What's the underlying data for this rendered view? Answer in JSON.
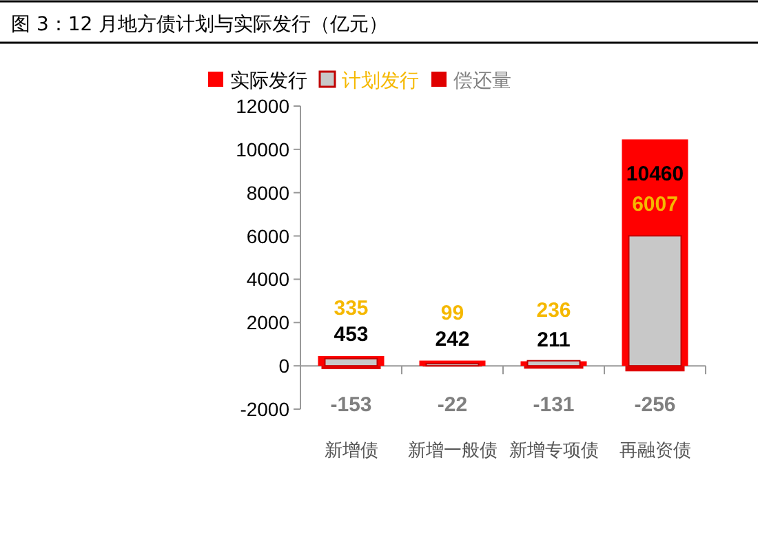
{
  "chart_data": {
    "type": "bar",
    "title": "图 3：12 月地方债计划与实际发行（亿元）",
    "categories": [
      "新增债",
      "新增一般债",
      "新增专项债",
      "再融资债"
    ],
    "series": [
      {
        "name": "实际发行",
        "color": "#ff0000",
        "values": [
          453,
          242,
          211,
          10460
        ]
      },
      {
        "name": "计划发行",
        "color": "#c8c8c8",
        "values": [
          335,
          99,
          236,
          6007
        ]
      },
      {
        "name": "偿还量",
        "color": "#e00000",
        "values": [
          -153,
          -22,
          -131,
          -256
        ]
      }
    ],
    "ylim": [
      -2000,
      12000
    ],
    "yticks": [
      -2000,
      0,
      2000,
      4000,
      6000,
      8000,
      10000,
      12000
    ],
    "legend": "top",
    "data_labels": true
  }
}
